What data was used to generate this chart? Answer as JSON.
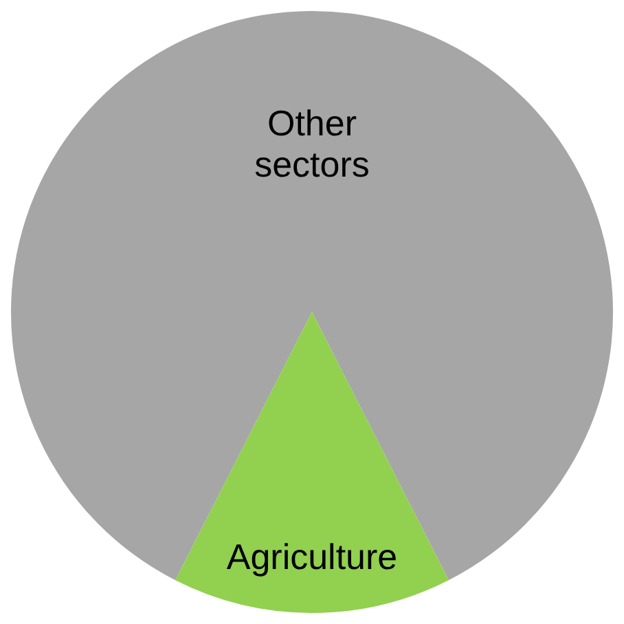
{
  "chart_data": {
    "type": "pie",
    "categories": [
      "Other\nsectors",
      "Agriculture"
    ],
    "values": [
      85,
      15
    ],
    "colors": [
      "#a6a6a6",
      "#92d050"
    ],
    "legend": false
  }
}
